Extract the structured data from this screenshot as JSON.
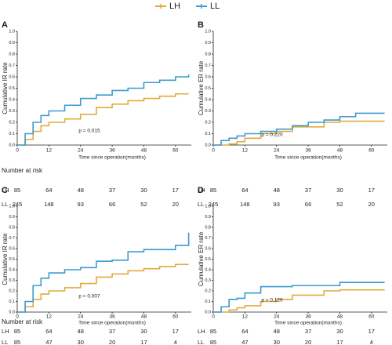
{
  "chart_data": [
    {
      "type": "step",
      "panel": "A",
      "y_label": "Cumulative IR rate",
      "x_label": "Time since operation(months)",
      "annotation": "p = 0.015",
      "x": [
        0,
        3,
        6,
        9,
        12,
        18,
        24,
        30,
        36,
        42,
        48,
        54,
        60,
        65
      ],
      "series": [
        {
          "name": "LH",
          "color": "#e2aa3b",
          "values": [
            0,
            0.05,
            0.12,
            0.17,
            0.2,
            0.23,
            0.27,
            0.33,
            0.36,
            0.39,
            0.41,
            0.43,
            0.45,
            0.45
          ]
        },
        {
          "name": "LL",
          "color": "#3d9bd2",
          "values": [
            0,
            0.1,
            0.2,
            0.26,
            0.3,
            0.35,
            0.41,
            0.44,
            0.48,
            0.5,
            0.55,
            0.57,
            0.6,
            0.62
          ]
        }
      ],
      "xlim": [
        0,
        66
      ],
      "xticks": [
        0,
        12,
        24,
        36,
        48,
        60
      ],
      "ylim": [
        0,
        1
      ],
      "yticks": [
        {
          "value": 0,
          "label": "0.0"
        },
        {
          "value": 0.1,
          "label": "0.1"
        },
        {
          "value": 0.2,
          "label": "0.2"
        },
        {
          "value": 0.3,
          "label": "0.3"
        },
        {
          "value": 0.4,
          "label": "0.4"
        },
        {
          "value": 0.5,
          "label": "0.5"
        },
        {
          "value": 0.6,
          "label": "0.6"
        },
        {
          "value": 0.7,
          "label": "0.7"
        },
        {
          "value": 0.8,
          "label": "0.8"
        },
        {
          "value": 0.9,
          "label": "0.9"
        },
        {
          "value": 1,
          "label": "1.0"
        }
      ],
      "risk_table": {
        "title": "Number at risk",
        "rows": [
          {
            "name": "LH",
            "values": [
              85,
              64,
              48,
              37,
              30,
              17
            ]
          },
          {
            "name": "LL",
            "values": [
              245,
              148,
              93,
              66,
              52,
              20
            ]
          }
        ]
      }
    },
    {
      "type": "step",
      "panel": "B",
      "y_label": "Cumulative ER rate",
      "x_label": "Time since operation(months)",
      "annotation": "p = 0.220",
      "x": [
        0,
        3,
        6,
        9,
        12,
        18,
        24,
        30,
        36,
        42,
        48,
        54,
        60,
        65
      ],
      "series": [
        {
          "name": "LH",
          "color": "#e2aa3b",
          "values": [
            0,
            0,
            0.01,
            0.03,
            0.06,
            0.1,
            0.12,
            0.16,
            0.16,
            0.2,
            0.21,
            0.21,
            0.21,
            0.21
          ]
        },
        {
          "name": "LL",
          "color": "#3d9bd2",
          "values": [
            0,
            0.04,
            0.06,
            0.08,
            0.1,
            0.12,
            0.14,
            0.17,
            0.2,
            0.22,
            0.25,
            0.28,
            0.28,
            0.28
          ]
        }
      ],
      "xlim": [
        0,
        66
      ],
      "xticks": [
        0,
        12,
        24,
        36,
        48,
        60
      ],
      "ylim": [
        0,
        1
      ],
      "yticks": [
        {
          "value": 0,
          "label": "0.0"
        },
        {
          "value": 0.1,
          "label": "0.1"
        },
        {
          "value": 0.2,
          "label": "0.2"
        },
        {
          "value": 0.3,
          "label": "0.3"
        },
        {
          "value": 0.4,
          "label": "0.4"
        },
        {
          "value": 0.5,
          "label": "0.5"
        },
        {
          "value": 0.6,
          "label": "0.6"
        },
        {
          "value": 0.7,
          "label": "0.7"
        },
        {
          "value": 0.8,
          "label": "0.8"
        },
        {
          "value": 0.9,
          "label": "0.9"
        },
        {
          "value": 1,
          "label": "1.0"
        }
      ],
      "risk_table": {
        "rows": [
          {
            "name": "LH",
            "values": [
              85,
              64,
              48,
              37,
              30,
              17
            ]
          },
          {
            "name": "LL",
            "values": [
              245,
              148,
              93,
              66,
              52,
              20
            ]
          }
        ]
      }
    },
    {
      "type": "step",
      "panel": "C",
      "y_label": "Cumulative IR rate",
      "x_label": "Time since operation(months)",
      "annotation": "p = 0.007",
      "x": [
        0,
        3,
        6,
        9,
        12,
        18,
        24,
        30,
        36,
        42,
        48,
        54,
        60,
        65
      ],
      "series": [
        {
          "name": "LH",
          "color": "#e2aa3b",
          "values": [
            0,
            0.05,
            0.12,
            0.17,
            0.2,
            0.23,
            0.27,
            0.33,
            0.36,
            0.39,
            0.41,
            0.43,
            0.45,
            0.45
          ]
        },
        {
          "name": "LL",
          "color": "#3d9bd2",
          "values": [
            0,
            0.1,
            0.25,
            0.32,
            0.37,
            0.4,
            0.42,
            0.48,
            0.49,
            0.57,
            0.59,
            0.59,
            0.63,
            0.75
          ]
        }
      ],
      "xlim": [
        0,
        66
      ],
      "xticks": [
        0,
        12,
        24,
        36,
        48,
        60
      ],
      "ylim": [
        0,
        1
      ],
      "yticks": [
        {
          "value": 0,
          "label": "0.0"
        },
        {
          "value": 0.1,
          "label": "0.1"
        },
        {
          "value": 0.2,
          "label": "0.2"
        },
        {
          "value": 0.3,
          "label": "0.3"
        },
        {
          "value": 0.4,
          "label": "0.4"
        },
        {
          "value": 0.5,
          "label": "0.5"
        },
        {
          "value": 0.6,
          "label": "0.6"
        },
        {
          "value": 0.7,
          "label": "0.7"
        },
        {
          "value": 0.8,
          "label": "0.8"
        },
        {
          "value": 0.9,
          "label": "0.9"
        },
        {
          "value": 1,
          "label": "1.0"
        }
      ],
      "risk_table": {
        "title": "Number at risk",
        "rows": [
          {
            "name": "LH",
            "values": [
              85,
              64,
              48,
              37,
              30,
              17
            ]
          },
          {
            "name": "LL",
            "values": [
              85,
              47,
              30,
              20,
              17,
              4
            ]
          }
        ]
      }
    },
    {
      "type": "step",
      "panel": "D",
      "y_label": "Cumulative ER rate",
      "x_label": "Time since operation(months)",
      "annotation": "p = 0.120",
      "x": [
        0,
        3,
        6,
        9,
        12,
        18,
        24,
        30,
        36,
        42,
        48,
        54,
        60,
        65
      ],
      "series": [
        {
          "name": "LH",
          "color": "#e2aa3b",
          "values": [
            0,
            0,
            0.02,
            0.04,
            0.06,
            0.1,
            0.12,
            0.16,
            0.16,
            0.2,
            0.21,
            0.21,
            0.21,
            0.21
          ]
        },
        {
          "name": "LL",
          "color": "#3d9bd2",
          "values": [
            0,
            0.05,
            0.12,
            0.13,
            0.18,
            0.24,
            0.24,
            0.25,
            0.25,
            0.25,
            0.28,
            0.28,
            0.28,
            0.28
          ]
        }
      ],
      "xlim": [
        0,
        66
      ],
      "xticks": [
        0,
        12,
        24,
        36,
        48,
        60
      ],
      "ylim": [
        0,
        1
      ],
      "yticks": [
        {
          "value": 0,
          "label": "0.0"
        },
        {
          "value": 0.1,
          "label": "0.1"
        },
        {
          "value": 0.2,
          "label": "0.2"
        },
        {
          "value": 0.3,
          "label": "0.3"
        },
        {
          "value": 0.4,
          "label": "0.4"
        },
        {
          "value": 0.5,
          "label": "0.5"
        },
        {
          "value": 0.6,
          "label": "0.6"
        },
        {
          "value": 0.7,
          "label": "0.7"
        },
        {
          "value": 0.8,
          "label": "0.8"
        },
        {
          "value": 0.9,
          "label": "0.9"
        },
        {
          "value": 1,
          "label": "1.0"
        }
      ],
      "risk_table": {
        "rows": [
          {
            "name": "LH",
            "values": [
              85,
              64,
              48,
              37,
              30,
              17
            ]
          },
          {
            "name": "LL",
            "values": [
              85,
              47,
              30,
              20,
              17,
              4
            ]
          }
        ]
      }
    }
  ]
}
